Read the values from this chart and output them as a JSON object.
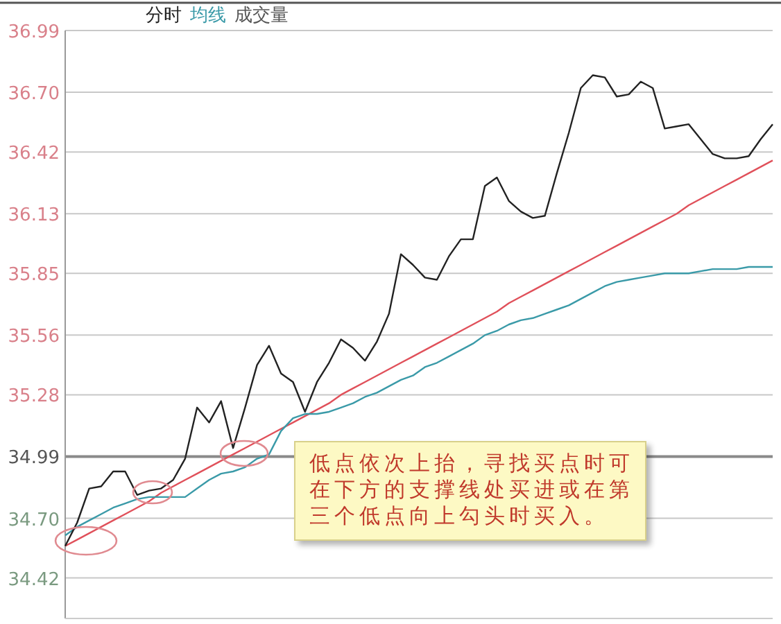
{
  "chart_data": {
    "type": "line",
    "categories": [
      null,
      null,
      null,
      null,
      null,
      null,
      null,
      null,
      null,
      null,
      null,
      null,
      null,
      null,
      null,
      null,
      null,
      null,
      null,
      null,
      null,
      null,
      null,
      null,
      null,
      null,
      null,
      null,
      null,
      null,
      null,
      null,
      null,
      null,
      null,
      null,
      null,
      null,
      null,
      null,
      null,
      null,
      null,
      null,
      null,
      null,
      null,
      null,
      null,
      null,
      null,
      null,
      null,
      null,
      null,
      null,
      null,
      null,
      null,
      null
    ],
    "series": [
      {
        "name": "分时",
        "color": "#222222",
        "values": [
          34.57,
          34.68,
          34.84,
          34.85,
          34.92,
          34.92,
          34.81,
          34.83,
          34.84,
          34.88,
          34.98,
          35.22,
          35.15,
          35.25,
          35.03,
          35.22,
          35.42,
          35.51,
          35.38,
          35.34,
          35.2,
          35.34,
          35.43,
          35.54,
          35.5,
          35.44,
          35.53,
          35.66,
          35.94,
          35.89,
          35.83,
          35.82,
          35.93,
          36.01,
          36.01,
          36.26,
          36.3,
          36.19,
          36.14,
          36.11,
          36.12,
          36.32,
          36.51,
          36.72,
          36.78,
          36.77,
          36.68,
          36.69,
          36.75,
          36.72,
          36.53,
          36.54,
          36.55,
          36.48,
          36.41,
          36.39,
          36.39,
          36.4,
          36.48,
          36.55
        ]
      },
      {
        "name": "均线",
        "color": "#3a9aa8",
        "values": [
          34.62,
          34.66,
          34.69,
          34.72,
          34.75,
          34.77,
          34.79,
          34.8,
          34.8,
          34.8,
          34.8,
          34.84,
          34.88,
          34.91,
          34.92,
          34.94,
          34.98,
          35.0,
          35.11,
          35.17,
          35.19,
          35.19,
          35.2,
          35.22,
          35.24,
          35.27,
          35.29,
          35.32,
          35.35,
          35.37,
          35.41,
          35.43,
          35.46,
          35.49,
          35.52,
          35.56,
          35.58,
          35.61,
          35.63,
          35.64,
          35.66,
          35.68,
          35.7,
          35.73,
          35.76,
          35.79,
          35.81,
          35.82,
          35.83,
          35.84,
          35.85,
          35.85,
          35.85,
          35.86,
          35.87,
          35.87,
          35.87,
          35.88,
          35.88,
          35.88
        ]
      },
      {
        "color": "#e0505a",
        "values": [
          34.57,
          34.6,
          34.63,
          34.66,
          34.69,
          34.72,
          34.75,
          34.78,
          34.82,
          34.85,
          34.88,
          34.91,
          34.94,
          34.97,
          35.0,
          35.03,
          35.06,
          35.09,
          35.12,
          35.15,
          35.18,
          35.21,
          35.24,
          35.28,
          35.31,
          35.34,
          35.37,
          35.4,
          35.43,
          35.46,
          35.49,
          35.52,
          35.55,
          35.58,
          35.61,
          35.64,
          35.67,
          35.71,
          35.74,
          35.77,
          35.8,
          35.83,
          35.86,
          35.89,
          35.92,
          35.95,
          35.98,
          36.01,
          36.04,
          36.07,
          36.1,
          36.13,
          36.17,
          36.2,
          36.23,
          36.26,
          36.29,
          36.32,
          36.35,
          36.38
        ]
      }
    ],
    "ylim": [
      34.23,
      36.99
    ],
    "yticks": [
      36.99,
      {
        "value": 36.7,
        "label": "36.70"
      },
      36.42,
      36.13,
      35.85,
      35.56,
      35.28,
      34.99,
      {
        "value": 34.7,
        "label": "34.70"
      },
      34.42
    ],
    "ref_lines": [
      {
        "axis": "y",
        "value": 34.99,
        "color": "#8a8a8a"
      }
    ],
    "grid": "y",
    "legend": "top left",
    "tick_labels": "y",
    "annotations": [
      "成交量",
      "低点依次上抬，寻找买点时可在下方的支撑线处买进或在第三个低点向上勾头时买入。"
    ]
  }
}
